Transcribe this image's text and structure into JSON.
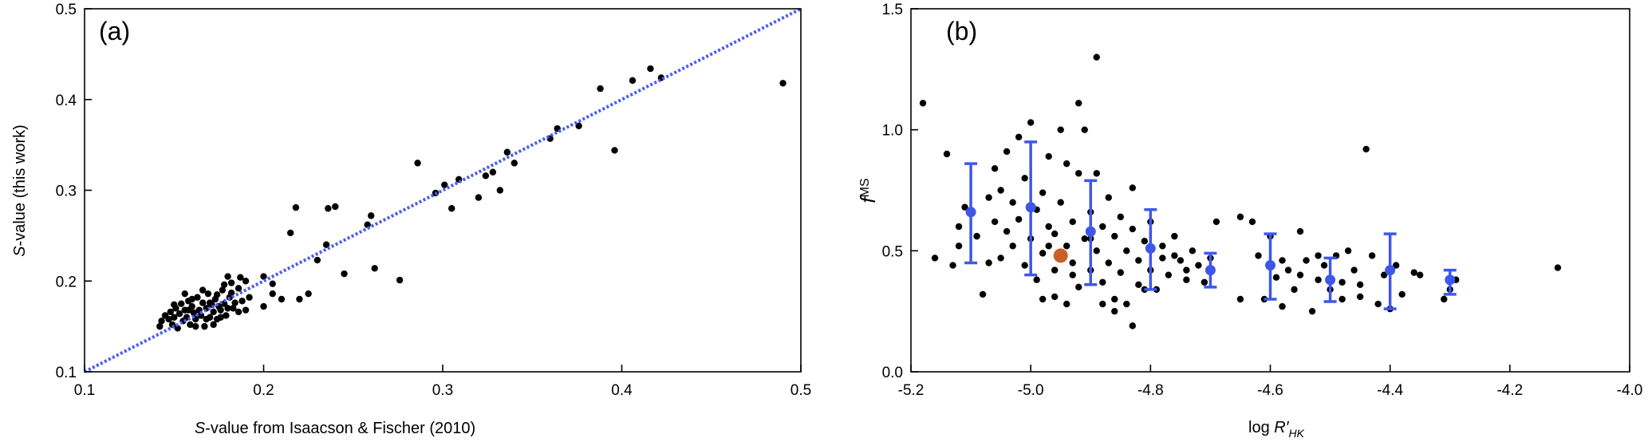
{
  "colors": {
    "points": "#000000",
    "diagonal": "#4a5ff0",
    "binned": "#3f57e8",
    "highlight": "#c8602a"
  },
  "chart_data": [
    {
      "type": "scatter",
      "panel_label": "(a)",
      "xlabel_italic": "S",
      "xlabel_rest": "-value from Isaacson & Fischer (2010)",
      "ylabel_italic": "S",
      "ylabel_rest": "-value (this work)",
      "xlim": [
        0.1,
        0.5
      ],
      "ylim": [
        0.1,
        0.5
      ],
      "xticks": [
        "0.1",
        "0.2",
        "0.3",
        "0.4",
        "0.5"
      ],
      "yticks": [
        "0.1",
        "0.2",
        "0.3",
        "0.4",
        "0.5"
      ],
      "reference_line": {
        "style": "dotted",
        "from": [
          0.1,
          0.1
        ],
        "to": [
          0.5,
          0.5
        ]
      },
      "points": [
        [
          0.142,
          0.15
        ],
        [
          0.143,
          0.156
        ],
        [
          0.145,
          0.162
        ],
        [
          0.147,
          0.158
        ],
        [
          0.148,
          0.166
        ],
        [
          0.149,
          0.152
        ],
        [
          0.15,
          0.16
        ],
        [
          0.151,
          0.17
        ],
        [
          0.152,
          0.148
        ],
        [
          0.153,
          0.164
        ],
        [
          0.154,
          0.175
        ],
        [
          0.155,
          0.156
        ],
        [
          0.156,
          0.168
        ],
        [
          0.157,
          0.16
        ],
        [
          0.158,
          0.178
        ],
        [
          0.159,
          0.152
        ],
        [
          0.16,
          0.172
        ],
        [
          0.161,
          0.165
        ],
        [
          0.162,
          0.158
        ],
        [
          0.163,
          0.182
        ],
        [
          0.164,
          0.168
        ],
        [
          0.165,
          0.162
        ],
        [
          0.166,
          0.176
        ],
        [
          0.167,
          0.15
        ],
        [
          0.168,
          0.17
        ],
        [
          0.169,
          0.186
        ],
        [
          0.17,
          0.16
        ],
        [
          0.171,
          0.174
        ],
        [
          0.172,
          0.166
        ],
        [
          0.173,
          0.18
        ],
        [
          0.174,
          0.158
        ],
        [
          0.175,
          0.172
        ],
        [
          0.176,
          0.168
        ],
        [
          0.177,
          0.19
        ],
        [
          0.178,
          0.175
        ],
        [
          0.179,
          0.162
        ],
        [
          0.18,
          0.17
        ],
        [
          0.181,
          0.182
        ],
        [
          0.182,
          0.198
        ],
        [
          0.183,
          0.17
        ],
        [
          0.184,
          0.176
        ],
        [
          0.186,
          0.166
        ],
        [
          0.187,
          0.204
        ],
        [
          0.188,
          0.178
        ],
        [
          0.19,
          0.168
        ],
        [
          0.192,
          0.182
        ],
        [
          0.15,
          0.174
        ],
        [
          0.156,
          0.186
        ],
        [
          0.16,
          0.18
        ],
        [
          0.166,
          0.19
        ],
        [
          0.17,
          0.176
        ],
        [
          0.174,
          0.185
        ],
        [
          0.178,
          0.196
        ],
        [
          0.182,
          0.187
        ],
        [
          0.158,
          0.168
        ],
        [
          0.162,
          0.15
        ],
        [
          0.168,
          0.158
        ],
        [
          0.172,
          0.152
        ],
        [
          0.176,
          0.16
        ],
        [
          0.19,
          0.2
        ],
        [
          0.18,
          0.205
        ],
        [
          0.186,
          0.192
        ],
        [
          0.2,
          0.205
        ],
        [
          0.205,
          0.197
        ],
        [
          0.2,
          0.172
        ],
        [
          0.205,
          0.186
        ],
        [
          0.21,
          0.18
        ],
        [
          0.215,
          0.253
        ],
        [
          0.22,
          0.18
        ],
        [
          0.225,
          0.186
        ],
        [
          0.218,
          0.281
        ],
        [
          0.23,
          0.223
        ],
        [
          0.235,
          0.24
        ],
        [
          0.24,
          0.282
        ],
        [
          0.236,
          0.28
        ],
        [
          0.245,
          0.208
        ],
        [
          0.26,
          0.272
        ],
        [
          0.262,
          0.214
        ],
        [
          0.258,
          0.262
        ],
        [
          0.276,
          0.201
        ],
        [
          0.286,
          0.33
        ],
        [
          0.296,
          0.297
        ],
        [
          0.301,
          0.306
        ],
        [
          0.305,
          0.28
        ],
        [
          0.309,
          0.312
        ],
        [
          0.32,
          0.292
        ],
        [
          0.324,
          0.316
        ],
        [
          0.328,
          0.32
        ],
        [
          0.332,
          0.3
        ],
        [
          0.336,
          0.342
        ],
        [
          0.34,
          0.33
        ],
        [
          0.36,
          0.357
        ],
        [
          0.364,
          0.368
        ],
        [
          0.376,
          0.371
        ],
        [
          0.388,
          0.412
        ],
        [
          0.396,
          0.344
        ],
        [
          0.406,
          0.421
        ],
        [
          0.416,
          0.434
        ],
        [
          0.422,
          0.424
        ],
        [
          0.49,
          0.418
        ]
      ]
    },
    {
      "type": "scatter",
      "panel_label": "(b)",
      "xlabel_prefix": "log ",
      "xlabel_italic": "R′",
      "xlabel_sub": "HK",
      "ylabel_italic": "f",
      "ylabel_sub": "MS",
      "xlim": [
        -5.2,
        -4.0
      ],
      "ylim": [
        0.0,
        1.5
      ],
      "xticks": [
        "-5.2",
        "-5.0",
        "-4.8",
        "-4.6",
        "-4.4",
        "-4.2",
        "-4.0"
      ],
      "yticks": [
        "0.0",
        "0.5",
        "1.0",
        "1.5"
      ],
      "points": [
        [
          -5.18,
          1.11
        ],
        [
          -5.16,
          0.47
        ],
        [
          -5.14,
          0.9
        ],
        [
          -5.12,
          0.6
        ],
        [
          -5.12,
          0.52
        ],
        [
          -5.11,
          0.68
        ],
        [
          -5.09,
          0.56
        ],
        [
          -5.08,
          0.32
        ],
        [
          -5.07,
          0.72
        ],
        [
          -5.06,
          0.62
        ],
        [
          -5.06,
          0.84
        ],
        [
          -5.05,
          0.47
        ],
        [
          -5.05,
          0.75
        ],
        [
          -5.04,
          0.58
        ],
        [
          -5.04,
          0.91
        ],
        [
          -5.03,
          0.7
        ],
        [
          -5.03,
          0.52
        ],
        [
          -5.02,
          0.63
        ],
        [
          -5.02,
          0.97
        ],
        [
          -5.01,
          0.44
        ],
        [
          -5.01,
          0.8
        ],
        [
          -5.0,
          1.03
        ],
        [
          -5.0,
          0.55
        ],
        [
          -4.99,
          0.67
        ],
        [
          -4.99,
          0.38
        ],
        [
          -4.98,
          0.74
        ],
        [
          -4.98,
          0.49
        ],
        [
          -4.97,
          0.6
        ],
        [
          -4.97,
          0.89
        ],
        [
          -4.96,
          0.42
        ],
        [
          -4.96,
          0.57
        ],
        [
          -4.96,
          0.31
        ],
        [
          -4.95,
          0.7
        ],
        [
          -4.95,
          0.48
        ],
        [
          -4.94,
          0.52
        ],
        [
          -4.94,
          0.86
        ],
        [
          -4.93,
          0.62
        ],
        [
          -4.93,
          0.4
        ],
        [
          -4.92,
          1.11
        ],
        [
          -4.92,
          0.35
        ],
        [
          -4.91,
          0.55
        ],
        [
          -4.91,
          1.0
        ],
        [
          -4.9,
          0.66
        ],
        [
          -4.9,
          0.42
        ],
        [
          -4.89,
          0.82
        ],
        [
          -4.89,
          0.5
        ],
        [
          -4.88,
          0.37
        ],
        [
          -4.88,
          0.6
        ],
        [
          -4.87,
          0.72
        ],
        [
          -4.87,
          0.45
        ],
        [
          -4.86,
          0.56
        ],
        [
          -4.86,
          0.3
        ],
        [
          -4.85,
          0.64
        ],
        [
          -4.85,
          0.41
        ],
        [
          -4.84,
          0.5
        ],
        [
          -4.84,
          0.28
        ],
        [
          -4.83,
          0.59
        ],
        [
          -4.83,
          0.76
        ],
        [
          -4.82,
          0.46
        ],
        [
          -4.82,
          0.36
        ],
        [
          -4.81,
          0.54
        ],
        [
          -4.8,
          0.42
        ],
        [
          -4.8,
          0.62
        ],
        [
          -4.79,
          0.34
        ],
        [
          -4.78,
          0.52
        ],
        [
          -4.78,
          0.47
        ],
        [
          -4.77,
          0.4
        ],
        [
          -4.76,
          0.56
        ],
        [
          -4.75,
          0.46
        ],
        [
          -4.74,
          0.38
        ],
        [
          -4.73,
          0.5
        ],
        [
          -4.72,
          0.44
        ],
        [
          -4.71,
          0.37
        ],
        [
          -4.7,
          0.47
        ],
        [
          -4.69,
          0.62
        ],
        [
          -4.92,
          0.82
        ],
        [
          -4.89,
          1.3
        ],
        [
          -4.95,
          1.0
        ],
        [
          -4.98,
          0.3
        ],
        [
          -4.94,
          0.28
        ],
        [
          -4.86,
          0.25
        ],
        [
          -4.83,
          0.19
        ],
        [
          -4.65,
          0.64
        ],
        [
          -4.63,
          0.62
        ],
        [
          -4.62,
          0.48
        ],
        [
          -4.61,
          0.3
        ],
        [
          -4.6,
          0.56
        ],
        [
          -4.59,
          0.39
        ],
        [
          -4.58,
          0.27
        ],
        [
          -4.57,
          0.42
        ],
        [
          -4.56,
          0.34
        ],
        [
          -4.55,
          0.58
        ],
        [
          -4.54,
          0.46
        ],
        [
          -4.53,
          0.25
        ],
        [
          -4.52,
          0.38
        ],
        [
          -4.51,
          0.44
        ],
        [
          -4.5,
          0.34
        ],
        [
          -4.49,
          0.48
        ],
        [
          -4.48,
          0.3
        ],
        [
          -4.47,
          0.5
        ],
        [
          -4.46,
          0.42
        ],
        [
          -4.45,
          0.36
        ],
        [
          -4.44,
          0.92
        ],
        [
          -4.43,
          0.48
        ],
        [
          -4.42,
          0.28
        ],
        [
          -4.41,
          0.4
        ],
        [
          -4.4,
          0.26
        ],
        [
          -4.39,
          0.44
        ],
        [
          -4.38,
          0.32
        ],
        [
          -4.36,
          0.41
        ],
        [
          -4.35,
          0.4
        ],
        [
          -4.31,
          0.3
        ],
        [
          -4.3,
          0.34
        ],
        [
          -4.29,
          0.38
        ],
        [
          -4.12,
          0.43
        ],
        [
          -4.65,
          0.3
        ],
        [
          -4.55,
          0.4
        ],
        [
          -4.45,
          0.31
        ],
        [
          -5.07,
          0.45
        ],
        [
          -5.13,
          0.44
        ],
        [
          -4.97,
          0.52
        ],
        [
          -4.93,
          0.45
        ],
        [
          -4.9,
          0.55
        ],
        [
          -4.88,
          0.28
        ],
        [
          -4.81,
          0.34
        ],
        [
          -4.76,
          0.48
        ],
        [
          -4.74,
          0.42
        ],
        [
          -4.58,
          0.46
        ],
        [
          -4.52,
          0.48
        ],
        [
          -4.48,
          0.37
        ]
      ],
      "binned_means": [
        {
          "x": -5.1,
          "y": 0.66,
          "yerr_low": 0.45,
          "yerr_high": 0.86
        },
        {
          "x": -5.0,
          "y": 0.68,
          "yerr_low": 0.4,
          "yerr_high": 0.95
        },
        {
          "x": -4.9,
          "y": 0.58,
          "yerr_low": 0.36,
          "yerr_high": 0.79
        },
        {
          "x": -4.8,
          "y": 0.51,
          "yerr_low": 0.34,
          "yerr_high": 0.67
        },
        {
          "x": -4.7,
          "y": 0.42,
          "yerr_low": 0.35,
          "yerr_high": 0.49
        },
        {
          "x": -4.6,
          "y": 0.44,
          "yerr_low": 0.3,
          "yerr_high": 0.57
        },
        {
          "x": -4.5,
          "y": 0.38,
          "yerr_low": 0.29,
          "yerr_high": 0.47
        },
        {
          "x": -4.4,
          "y": 0.42,
          "yerr_low": 0.26,
          "yerr_high": 0.57
        },
        {
          "x": -4.3,
          "y": 0.38,
          "yerr_low": 0.32,
          "yerr_high": 0.42
        }
      ],
      "highlight_point": {
        "x": -4.95,
        "y": 0.48
      }
    }
  ]
}
